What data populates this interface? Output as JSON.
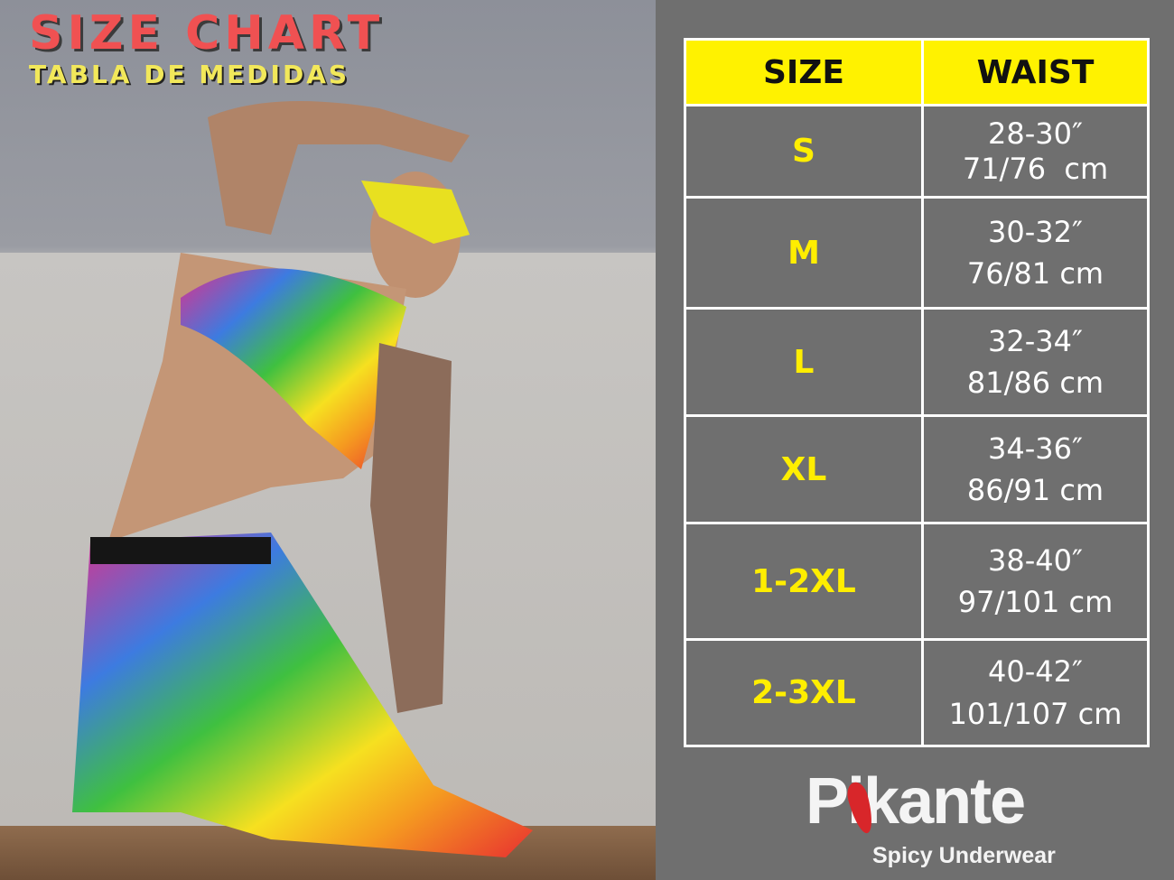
{
  "header": {
    "title": "SIZE CHART",
    "subtitle": "TABLA DE MEDIDAS"
  },
  "table": {
    "columns": [
      "SIZE",
      "WAIST"
    ],
    "rows": [
      {
        "size": "S",
        "inches": "28-30″",
        "cm": "71/76  cm"
      },
      {
        "size": "M",
        "inches": "30-32″",
        "cm": "76/81 cm"
      },
      {
        "size": "L",
        "inches": "32-34″",
        "cm": "81/86 cm"
      },
      {
        "size": "XL",
        "inches": "34-36″",
        "cm": "86/91 cm"
      },
      {
        "size": "1-2XL",
        "inches": "38-40″",
        "cm": "97/101 cm"
      },
      {
        "size": "2-3XL",
        "inches": "40-42″",
        "cm": "101/107 cm"
      }
    ]
  },
  "logo": {
    "brand": "Pikante",
    "tagline": "Spicy Underwear"
  },
  "colors": {
    "header_bg": "#fff200",
    "size_text": "#ffee00",
    "title": "#f05152",
    "subtitle": "#f2e85a",
    "panel_bg": "#6f6f6f"
  }
}
